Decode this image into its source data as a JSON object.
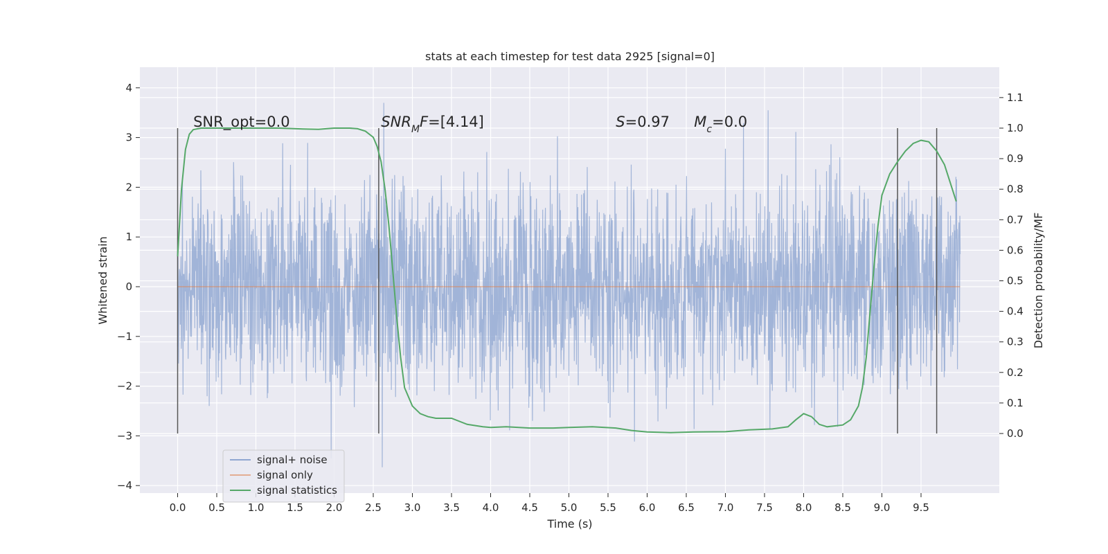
{
  "chart_data": {
    "type": "line",
    "title": "stats at each timestep for test data 2925 [signal=0]",
    "xlabel": "Time (s)",
    "ylabel_left": "Whitened strain",
    "ylabel_right": "Detection probability/MF",
    "xlim": [
      -0.5,
      10.5
    ],
    "ylim_left": [
      -4.15,
      4.4
    ],
    "ylim_right": [
      -0.24,
      1.2
    ],
    "xticks": [
      0.0,
      0.5,
      1.0,
      1.5,
      2.0,
      2.5,
      3.0,
      3.5,
      4.0,
      4.5,
      5.0,
      5.5,
      6.0,
      6.5,
      7.0,
      7.5,
      8.0,
      8.5,
      9.0,
      9.5
    ],
    "xtick_labels": [
      "0.0",
      "0.5",
      "1.0",
      "1.5",
      "2.0",
      "2.5",
      "3.0",
      "3.5",
      "4.0",
      "4.5",
      "5.0",
      "5.5",
      "6.0",
      "6.5",
      "7.0",
      "7.5",
      "8.0",
      "8.5",
      "9.0",
      "9.5"
    ],
    "yticks_left": [
      -4,
      -3,
      -2,
      -1,
      0,
      1,
      2,
      3,
      4
    ],
    "ytick_labels_left": [
      "−4",
      "−3",
      "−2",
      "−1",
      "0",
      "1",
      "2",
      "3",
      "4"
    ],
    "yticks_right": [
      0.0,
      0.1,
      0.2,
      0.3,
      0.4,
      0.5,
      0.6,
      0.7,
      0.8,
      0.9,
      1.0,
      1.1
    ],
    "ytick_labels_right": [
      "0.0",
      "0.1",
      "0.2",
      "0.3",
      "0.4",
      "0.5",
      "0.6",
      "0.7",
      "0.8",
      "0.9",
      "1.0",
      "1.1"
    ],
    "grid": true,
    "legend_position": "bottom-left",
    "series": [
      {
        "name": "signal+ noise",
        "axis": "left",
        "color": "#8fa6d1",
        "style": "dense noise trace",
        "x_range": [
          0.0,
          10.0
        ],
        "approx_std": 1.0,
        "approx_max": 4.07,
        "approx_min": -3.78
      },
      {
        "name": "signal only",
        "axis": "left",
        "color": "#dd8452",
        "x": [
          0.0,
          10.0
        ],
        "y": [
          0.0,
          0.0
        ]
      },
      {
        "name": "signal statistics",
        "axis": "right",
        "color": "#55a868",
        "x": [
          0.0,
          0.05,
          0.1,
          0.15,
          0.2,
          0.3,
          0.5,
          0.8,
          1.0,
          1.3,
          1.6,
          1.8,
          2.0,
          2.2,
          2.3,
          2.4,
          2.5,
          2.55,
          2.6,
          2.65,
          2.7,
          2.75,
          2.8,
          2.85,
          2.9,
          3.0,
          3.1,
          3.2,
          3.3,
          3.5,
          3.7,
          3.9,
          4.0,
          4.2,
          4.5,
          4.8,
          5.0,
          5.3,
          5.6,
          5.8,
          6.0,
          6.3,
          6.6,
          7.0,
          7.3,
          7.6,
          7.8,
          7.9,
          8.0,
          8.1,
          8.2,
          8.3,
          8.5,
          8.6,
          8.7,
          8.75,
          8.8,
          8.85,
          8.9,
          8.95,
          9.0,
          9.1,
          9.2,
          9.3,
          9.4,
          9.5,
          9.6,
          9.7,
          9.8,
          9.9,
          9.95
        ],
        "y": [
          0.58,
          0.8,
          0.93,
          0.98,
          0.995,
          1.0,
          1.0,
          1.0,
          1.0,
          1.0,
          0.997,
          0.996,
          1.0,
          1.0,
          0.998,
          0.99,
          0.97,
          0.94,
          0.89,
          0.8,
          0.68,
          0.53,
          0.38,
          0.25,
          0.15,
          0.09,
          0.065,
          0.055,
          0.05,
          0.05,
          0.03,
          0.022,
          0.02,
          0.022,
          0.018,
          0.018,
          0.02,
          0.022,
          0.018,
          0.01,
          0.005,
          0.003,
          0.005,
          0.006,
          0.012,
          0.015,
          0.022,
          0.045,
          0.065,
          0.055,
          0.03,
          0.022,
          0.028,
          0.045,
          0.09,
          0.15,
          0.25,
          0.4,
          0.55,
          0.68,
          0.78,
          0.85,
          0.89,
          0.925,
          0.95,
          0.96,
          0.955,
          0.925,
          0.88,
          0.8,
          0.76
        ]
      }
    ],
    "vertical_lines": [
      0.0,
      2.57,
      9.2,
      9.7
    ],
    "vertical_lines_right_range": [
      0.0,
      1.0
    ],
    "annotations": [
      {
        "x": 0.2,
        "y_right": 1.0,
        "parts": [
          {
            "t": "SNR_opt=0.0",
            "i": false
          }
        ]
      },
      {
        "x": 2.6,
        "y_right": 1.0,
        "parts": [
          {
            "t": "SNR",
            "i": true
          },
          {
            "t": "M",
            "i": true,
            "sub": true
          },
          {
            "t": "F",
            "i": true
          },
          {
            "t": "=[4.14]",
            "i": false
          }
        ]
      },
      {
        "x": 5.6,
        "y_right": 1.0,
        "parts": [
          {
            "t": "S",
            "i": true
          },
          {
            "t": "=0.97",
            "i": false
          }
        ]
      },
      {
        "x": 6.6,
        "y_right": 1.0,
        "parts": [
          {
            "t": "M",
            "i": true
          },
          {
            "t": "c",
            "i": true,
            "sub": true
          },
          {
            "t": "=0.0",
            "i": false
          }
        ]
      }
    ]
  }
}
